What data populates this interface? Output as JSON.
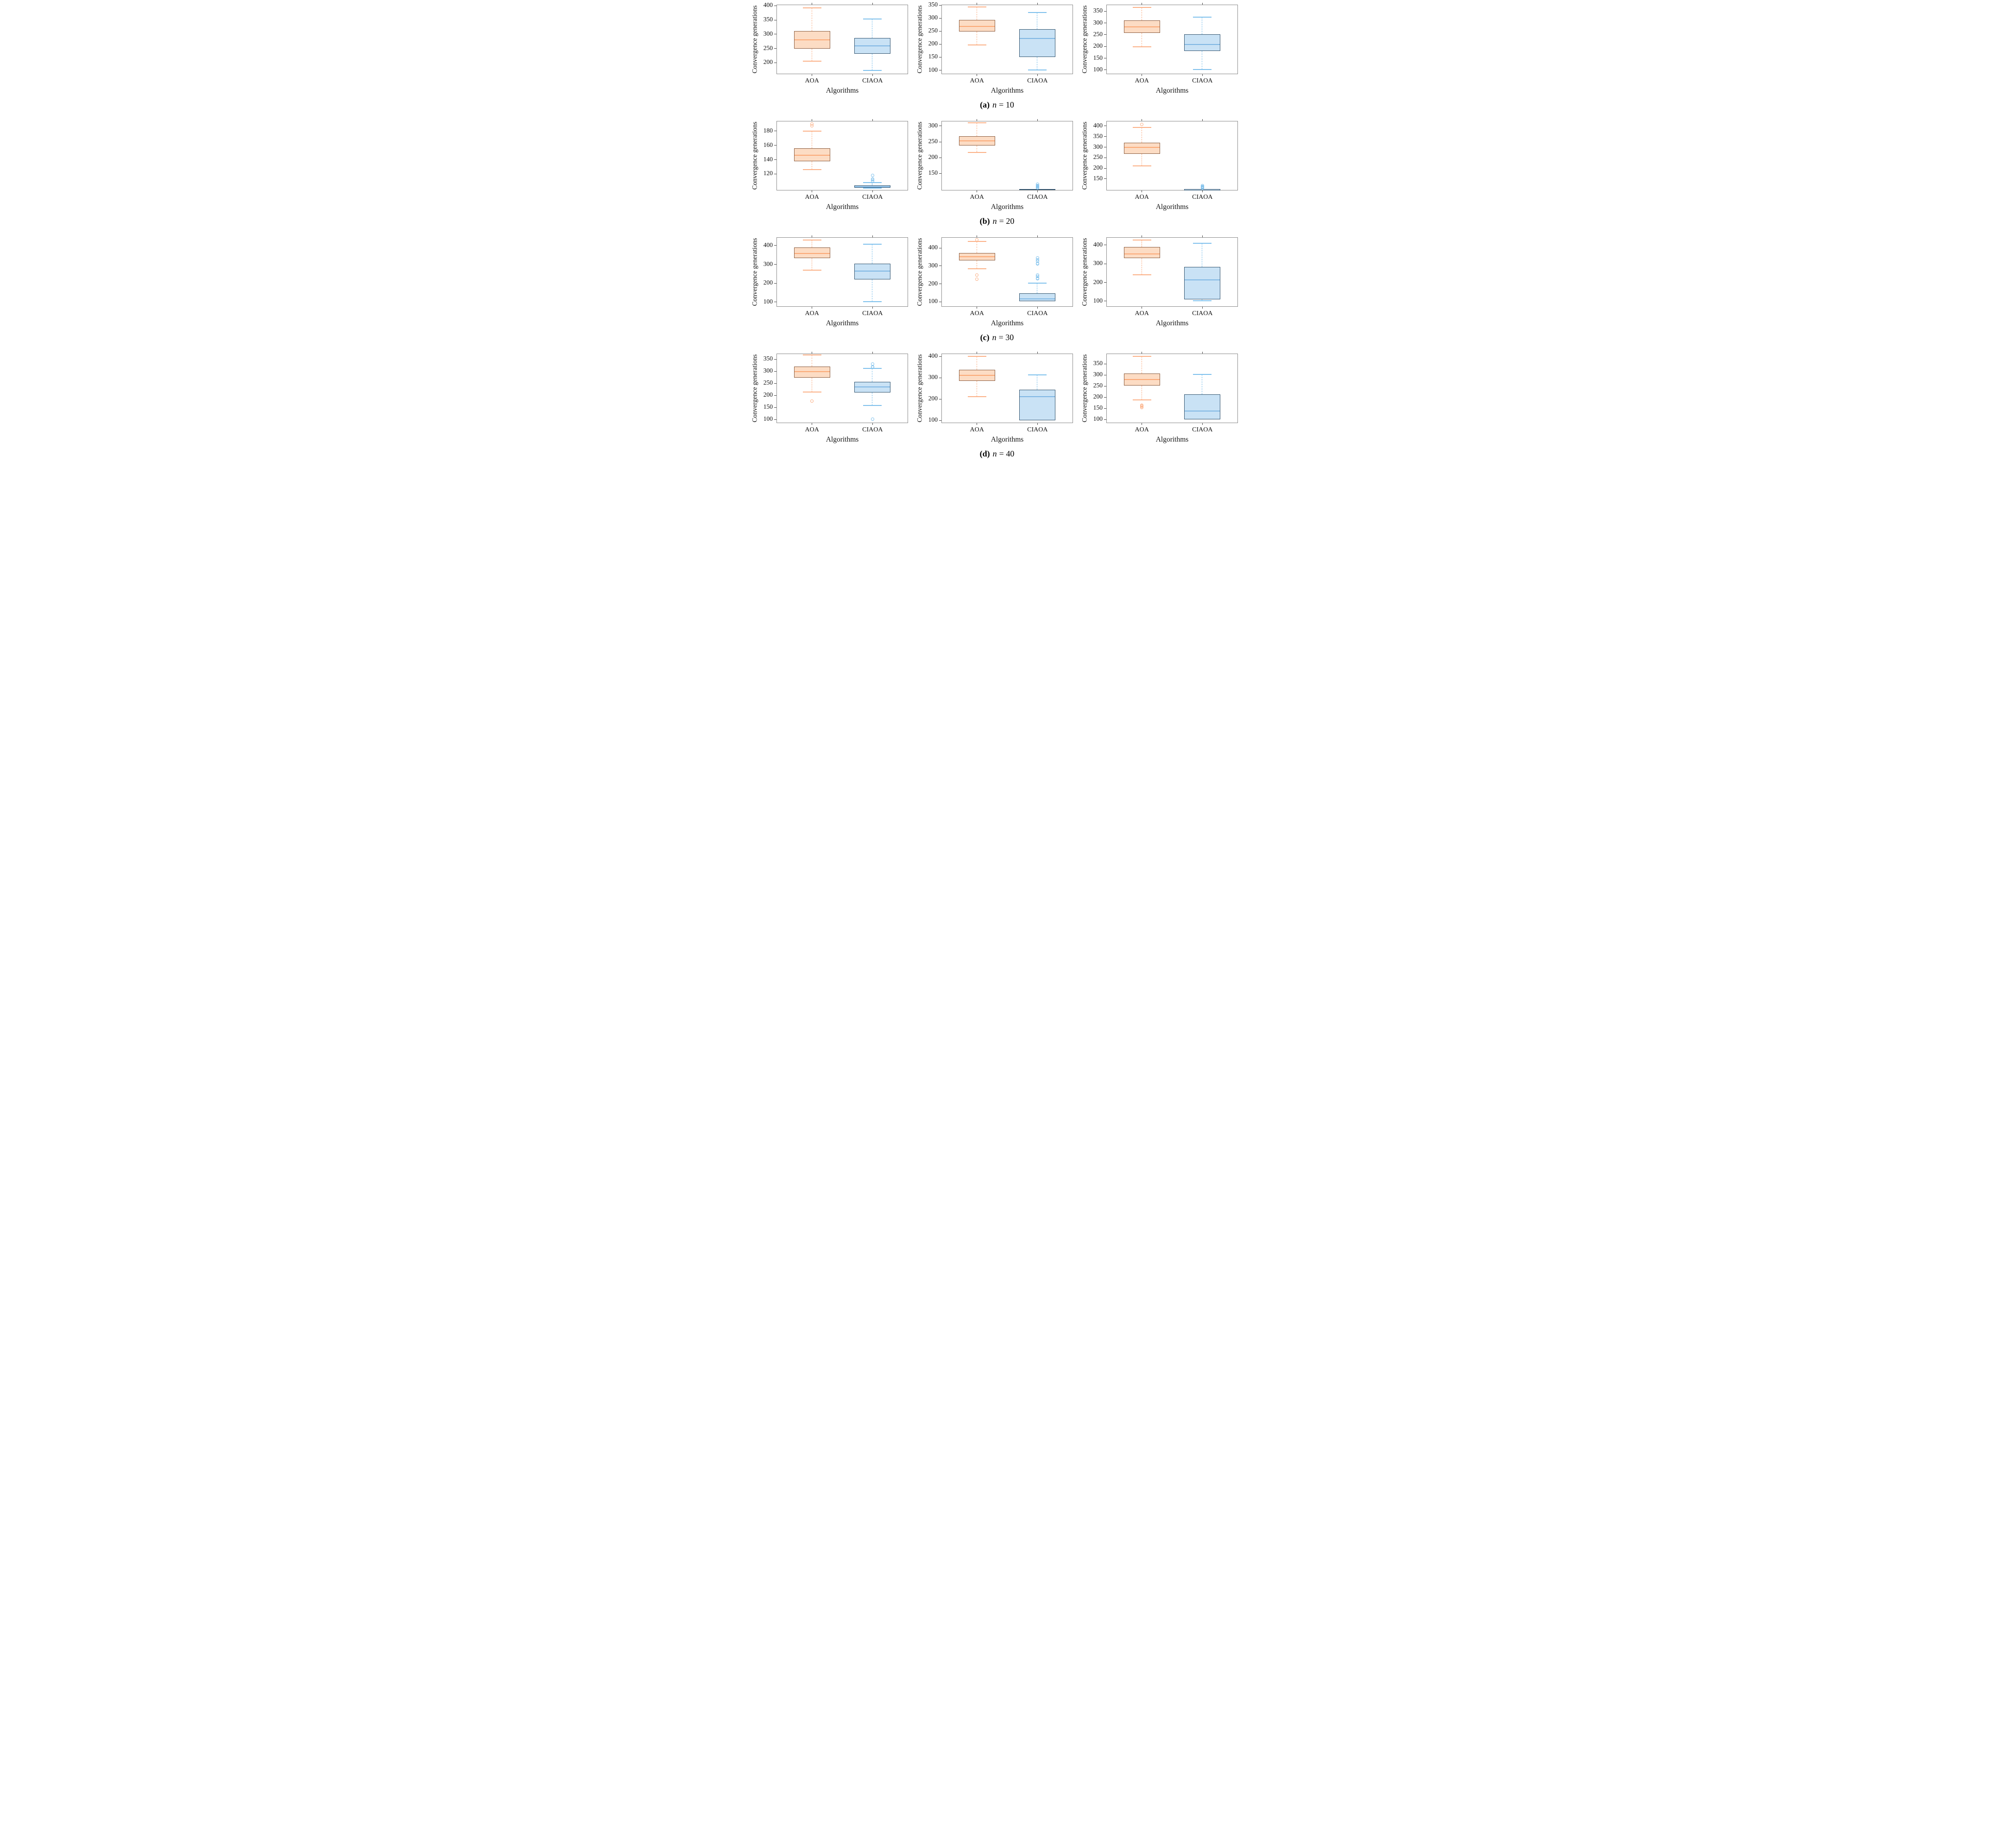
{
  "figure": {
    "ylabel": "Convergence generations",
    "xlabel": "Algorithms",
    "categories": [
      "AOA",
      "CIAOA"
    ],
    "groups": [
      {
        "label": "(a)",
        "var": "n",
        "eq": "= 10"
      },
      {
        "label": "(b)",
        "var": "n",
        "eq": "= 20"
      },
      {
        "label": "(c)",
        "var": "n",
        "eq": "= 30"
      },
      {
        "label": "(d)",
        "var": "n",
        "eq": "= 40"
      }
    ]
  },
  "colors": {
    "orange_fill": "#fcdcc4",
    "orange_edge": "#8a5a3c",
    "orange_median": "#fba875",
    "orange_whisker": "#fbb086",
    "blue_fill": "#c9e2f5",
    "blue_edge": "#31536e",
    "blue_median": "#7eb6e3",
    "blue_whisker": "#7ec0ec",
    "frame": "#8a8a8a",
    "tick": "#444444",
    "text": "#111111"
  },
  "chart_data": [
    {
      "id": "a1",
      "group": 0,
      "type": "box",
      "ylabel": "Convergence generations",
      "xlabel": "Algorithms",
      "ylim": [
        160,
        404
      ],
      "yticks": [
        200,
        250,
        300,
        350,
        400
      ],
      "series": [
        {
          "name": "AOA",
          "color": "orange",
          "whislo": 205,
          "q1": 249,
          "med": 280,
          "q3": 311,
          "whishi": 393,
          "outliers": []
        },
        {
          "name": "CIAOA",
          "color": "blue",
          "whislo": 173,
          "q1": 232,
          "med": 260,
          "q3": 287,
          "whishi": 354,
          "outliers": []
        }
      ]
    },
    {
      "id": "a2",
      "group": 0,
      "type": "box",
      "ylabel": "Convergence generations",
      "xlabel": "Algorithms",
      "ylim": [
        85,
        352
      ],
      "yticks": [
        100,
        150,
        200,
        250,
        300,
        350
      ],
      "series": [
        {
          "name": "AOA",
          "color": "orange",
          "whislo": 197,
          "q1": 248,
          "med": 268,
          "q3": 293,
          "whishi": 343,
          "outliers": []
        },
        {
          "name": "CIAOA",
          "color": "blue",
          "whislo": 101,
          "q1": 150,
          "med": 222,
          "q3": 257,
          "whishi": 321,
          "outliers": []
        }
      ]
    },
    {
      "id": "a3",
      "group": 0,
      "type": "box",
      "ylabel": "Convergence generations",
      "xlabel": "Algorithms",
      "ylim": [
        82,
        378
      ],
      "yticks": [
        100,
        150,
        200,
        250,
        300,
        350
      ],
      "series": [
        {
          "name": "AOA",
          "color": "orange",
          "whislo": 199,
          "q1": 258,
          "med": 283,
          "q3": 311,
          "whishi": 367,
          "outliers": []
        },
        {
          "name": "CIAOA",
          "color": "blue",
          "whislo": 101,
          "q1": 181,
          "med": 208,
          "q3": 251,
          "whishi": 325,
          "outliers": []
        }
      ]
    },
    {
      "id": "b1",
      "group": 1,
      "type": "box",
      "ylabel": "Convergence generations",
      "xlabel": "Algorithms",
      "ylim": [
        97,
        194
      ],
      "yticks": [
        120,
        140,
        160,
        180
      ],
      "series": [
        {
          "name": "AOA",
          "color": "orange",
          "whislo": 126,
          "q1": 138,
          "med": 146,
          "q3": 156,
          "whishi": 180,
          "outliers": [
            187,
            190
          ]
        },
        {
          "name": "CIAOA",
          "color": "blue",
          "whislo": 100,
          "q1": 101,
          "med": 102,
          "q3": 104,
          "whishi": 108,
          "outliers": [
            110,
            112,
            113,
            118
          ]
        }
      ]
    },
    {
      "id": "b2",
      "group": 1,
      "type": "box",
      "ylabel": "Convergence generations",
      "xlabel": "Algorithms",
      "ylim": [
        96,
        316
      ],
      "yticks": [
        150,
        200,
        250,
        300
      ],
      "series": [
        {
          "name": "AOA",
          "color": "orange",
          "whislo": 217,
          "q1": 238,
          "med": 253,
          "q3": 268,
          "whishi": 310,
          "outliers": []
        },
        {
          "name": "CIAOA",
          "color": "blue",
          "whislo": 100,
          "q1": 100,
          "med": 100.5,
          "q3": 101,
          "whishi": 101,
          "outliers": [
            104,
            106,
            108,
            110,
            112,
            116
          ]
        }
      ]
    },
    {
      "id": "b3",
      "group": 1,
      "type": "box",
      "ylabel": "Convergence generations",
      "xlabel": "Algorithms",
      "ylim": [
        95,
        424
      ],
      "yticks": [
        150,
        200,
        250,
        300,
        350,
        400
      ],
      "series": [
        {
          "name": "AOA",
          "color": "orange",
          "whislo": 212,
          "q1": 268,
          "med": 299,
          "q3": 320,
          "whishi": 393,
          "outliers": [
            407
          ]
        },
        {
          "name": "CIAOA",
          "color": "blue",
          "whislo": 100,
          "q1": 100,
          "med": 100.5,
          "q3": 101,
          "whishi": 101,
          "outliers": [
            108,
            110,
            112,
            114,
            117
          ]
        }
      ]
    },
    {
      "id": "c1",
      "group": 2,
      "type": "box",
      "ylabel": "Convergence generations",
      "xlabel": "Algorithms",
      "ylim": [
        75,
        444
      ],
      "yticks": [
        100,
        200,
        300,
        400
      ],
      "series": [
        {
          "name": "AOA",
          "color": "orange",
          "whislo": 270,
          "q1": 333,
          "med": 357,
          "q3": 390,
          "whishi": 430,
          "outliers": []
        },
        {
          "name": "CIAOA",
          "color": "blue",
          "whislo": 102,
          "q1": 220,
          "med": 265,
          "q3": 303,
          "whishi": 406,
          "outliers": []
        }
      ]
    },
    {
      "id": "c2",
      "group": 2,
      "type": "box",
      "ylabel": "Convergence generations",
      "xlabel": "Algorithms",
      "ylim": [
        72,
        460
      ],
      "yticks": [
        100,
        200,
        300,
        400
      ],
      "series": [
        {
          "name": "AOA",
          "color": "orange",
          "whislo": 283,
          "q1": 330,
          "med": 352,
          "q3": 373,
          "whishi": 437,
          "outliers": [
            227,
            248,
            445
          ]
        },
        {
          "name": "CIAOA",
          "color": "blue",
          "whislo": 100,
          "q1": 102,
          "med": 117,
          "q3": 147,
          "whishi": 203,
          "outliers": [
            228,
            230,
            242,
            250,
            310,
            315,
            327,
            335,
            345
          ]
        }
      ]
    },
    {
      "id": "c3",
      "group": 2,
      "type": "box",
      "ylabel": "Convergence generations",
      "xlabel": "Algorithms",
      "ylim": [
        70,
        442
      ],
      "yticks": [
        100,
        200,
        300,
        400
      ],
      "series": [
        {
          "name": "AOA",
          "color": "orange",
          "whislo": 240,
          "q1": 330,
          "med": 353,
          "q3": 390,
          "whishi": 428,
          "outliers": []
        },
        {
          "name": "CIAOA",
          "color": "blue",
          "whislo": 102,
          "q1": 110,
          "med": 213,
          "q3": 283,
          "whishi": 410,
          "outliers": []
        }
      ]
    },
    {
      "id": "d1",
      "group": 3,
      "type": "box",
      "ylabel": "Convergence generations",
      "xlabel": "Algorithms",
      "ylim": [
        85,
        374
      ],
      "yticks": [
        100,
        150,
        200,
        250,
        300,
        350
      ],
      "series": [
        {
          "name": "AOA",
          "color": "orange",
          "whislo": 214,
          "q1": 274,
          "med": 298,
          "q3": 320,
          "whishi": 368,
          "outliers": [
            177
          ]
        },
        {
          "name": "CIAOA",
          "color": "blue",
          "whislo": 158,
          "q1": 213,
          "med": 236,
          "q3": 256,
          "whishi": 313,
          "outliers": [
            102,
            318,
            320,
            331
          ]
        }
      ]
    },
    {
      "id": "d2",
      "group": 3,
      "type": "box",
      "ylabel": "Convergence generations",
      "xlabel": "Algorithms",
      "ylim": [
        88,
        414
      ],
      "yticks": [
        100,
        200,
        300,
        400
      ],
      "series": [
        {
          "name": "AOA",
          "color": "orange",
          "whislo": 212,
          "q1": 285,
          "med": 312,
          "q3": 337,
          "whishi": 400,
          "outliers": []
        },
        {
          "name": "CIAOA",
          "color": "blue",
          "whislo": 101,
          "q1": 101,
          "med": 212,
          "q3": 244,
          "whishi": 314,
          "outliers": []
        }
      ]
    },
    {
      "id": "d3",
      "group": 3,
      "type": "box",
      "ylabel": "Convergence generations",
      "xlabel": "Algorithms",
      "ylim": [
        84,
        396
      ],
      "yticks": [
        100,
        150,
        200,
        250,
        300,
        350
      ],
      "series": [
        {
          "name": "AOA",
          "color": "orange",
          "whislo": 187,
          "q1": 252,
          "med": 279,
          "q3": 306,
          "whishi": 383,
          "outliers": [
            154,
            158,
            162,
            165
          ]
        },
        {
          "name": "CIAOA",
          "color": "blue",
          "whislo": 100,
          "q1": 101,
          "med": 139,
          "q3": 212,
          "whishi": 302,
          "outliers": []
        }
      ]
    }
  ]
}
